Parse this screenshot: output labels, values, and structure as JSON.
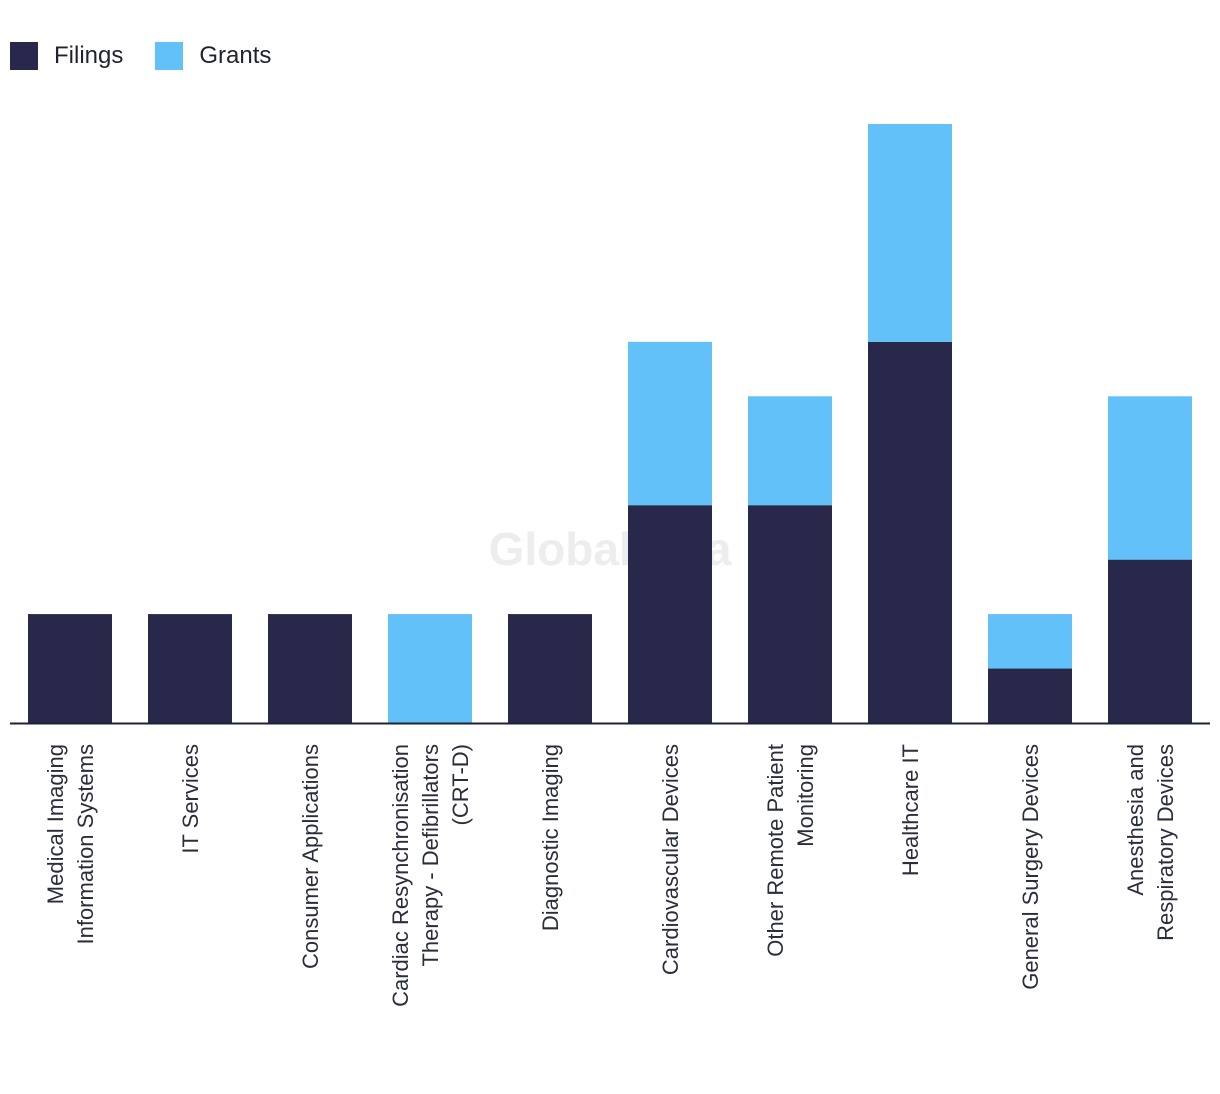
{
  "legend": {
    "items": [
      {
        "label": "Filings",
        "color": "#27284a"
      },
      {
        "label": "Grants",
        "color": "#62c1f9"
      }
    ]
  },
  "watermark": "GlobalData",
  "chart_data": {
    "type": "bar",
    "stacked": true,
    "categories": [
      "Medical Imaging Information Systems",
      "IT Services",
      "Consumer Applications",
      "Cardiac Resynchronisation Therapy - Defibrillators (CRT-D)",
      "Diagnostic Imaging",
      "Cardiovascular Devices",
      "Other Remote Patient Monitoring",
      "Healthcare IT",
      "General Surgery Devices",
      "Anesthesia and Respiratory Devices"
    ],
    "category_lines": [
      [
        "Medical Imaging",
        "Information Systems"
      ],
      [
        "IT Services"
      ],
      [
        "Consumer Applications"
      ],
      [
        "Cardiac Resynchronisation",
        "Therapy - Defibrillators",
        "(CRT-D)"
      ],
      [
        "Diagnostic Imaging"
      ],
      [
        "Cardiovascular Devices"
      ],
      [
        "Other Remote Patient",
        "Monitoring"
      ],
      [
        "Healthcare IT"
      ],
      [
        "General Surgery Devices"
      ],
      [
        "Anesthesia and",
        "Respiratory Devices"
      ]
    ],
    "series": [
      {
        "name": "Filings",
        "color": "#27284a",
        "values": [
          2,
          2,
          2,
          0,
          2,
          4,
          4,
          7,
          1,
          3
        ]
      },
      {
        "name": "Grants",
        "color": "#62c1f9",
        "values": [
          0,
          0,
          0,
          2,
          0,
          3,
          2,
          4,
          1,
          3
        ]
      }
    ],
    "ylim": [
      0,
      11
    ],
    "grid": false,
    "legend_position": "top-left",
    "title": "",
    "xlabel": "",
    "ylabel": ""
  }
}
